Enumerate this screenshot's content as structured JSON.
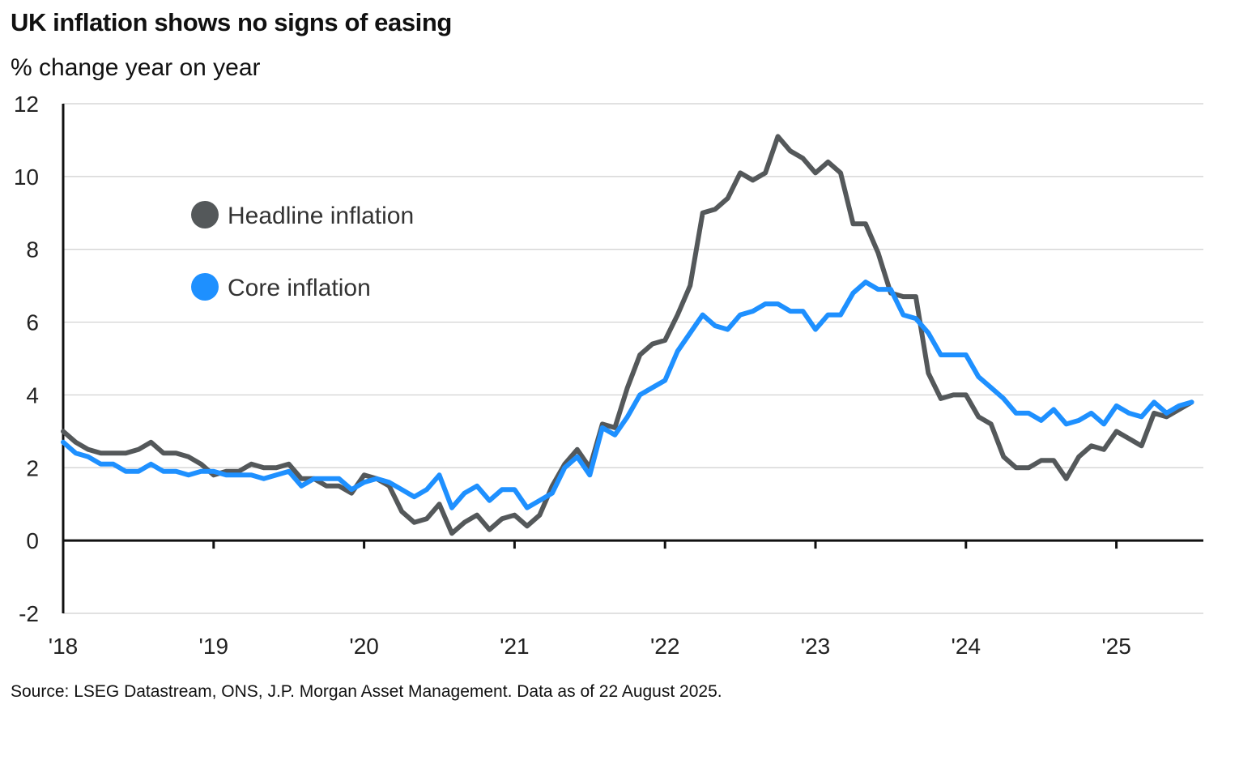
{
  "chart_data": {
    "type": "line",
    "title": "UK inflation shows no signs of easing",
    "subtitle": "% change year on year",
    "source": "Source: LSEG Datastream, ONS, J.P. Morgan Asset Management. Data as of 22 August 2025.",
    "ylim": [
      -2,
      12
    ],
    "yticks": [
      -2,
      0,
      2,
      4,
      6,
      8,
      10,
      12
    ],
    "xlim": [
      2018.0,
      2025.58
    ],
    "xticks": [
      {
        "label": "'18",
        "value": 2018
      },
      {
        "label": "'19",
        "value": 2019
      },
      {
        "label": "'20",
        "value": 2020
      },
      {
        "label": "'21",
        "value": 2021
      },
      {
        "label": "'22",
        "value": 2022
      },
      {
        "label": "'23",
        "value": 2023
      },
      {
        "label": "'24",
        "value": 2024
      },
      {
        "label": "'25",
        "value": 2025
      }
    ],
    "x_start": "2018-01",
    "x_frequency": "monthly",
    "grid": true,
    "legend_position": "top-left",
    "series": [
      {
        "name": "Headline inflation",
        "color": "#54585a",
        "values": [
          3.0,
          2.7,
          2.5,
          2.4,
          2.4,
          2.4,
          2.5,
          2.7,
          2.4,
          2.4,
          2.3,
          2.1,
          1.8,
          1.9,
          1.9,
          2.1,
          2.0,
          2.0,
          2.1,
          1.7,
          1.7,
          1.5,
          1.5,
          1.3,
          1.8,
          1.7,
          1.5,
          0.8,
          0.5,
          0.6,
          1.0,
          0.2,
          0.5,
          0.7,
          0.3,
          0.6,
          0.7,
          0.4,
          0.7,
          1.5,
          2.1,
          2.5,
          2.0,
          3.2,
          3.1,
          4.2,
          5.1,
          5.4,
          5.5,
          6.2,
          7.0,
          9.0,
          9.1,
          9.4,
          10.1,
          9.9,
          10.1,
          11.1,
          10.7,
          10.5,
          10.1,
          10.4,
          10.1,
          8.7,
          8.7,
          7.9,
          6.8,
          6.7,
          6.7,
          4.6,
          3.9,
          4.0,
          4.0,
          3.4,
          3.2,
          2.3,
          2.0,
          2.0,
          2.2,
          2.2,
          1.7,
          2.3,
          2.6,
          2.5,
          3.0,
          2.8,
          2.6,
          3.5,
          3.4,
          3.6,
          3.8
        ]
      },
      {
        "name": "Core inflation",
        "color": "#1e90ff",
        "values": [
          2.7,
          2.4,
          2.3,
          2.1,
          2.1,
          1.9,
          1.9,
          2.1,
          1.9,
          1.9,
          1.8,
          1.9,
          1.9,
          1.8,
          1.8,
          1.8,
          1.7,
          1.8,
          1.9,
          1.5,
          1.7,
          1.7,
          1.7,
          1.4,
          1.6,
          1.7,
          1.6,
          1.4,
          1.2,
          1.4,
          1.8,
          0.9,
          1.3,
          1.5,
          1.1,
          1.4,
          1.4,
          0.9,
          1.1,
          1.3,
          2.0,
          2.3,
          1.8,
          3.1,
          2.9,
          3.4,
          4.0,
          4.2,
          4.4,
          5.2,
          5.7,
          6.2,
          5.9,
          5.8,
          6.2,
          6.3,
          6.5,
          6.5,
          6.3,
          6.3,
          5.8,
          6.2,
          6.2,
          6.8,
          7.1,
          6.9,
          6.9,
          6.2,
          6.1,
          5.7,
          5.1,
          5.1,
          5.1,
          4.5,
          4.2,
          3.9,
          3.5,
          3.5,
          3.3,
          3.6,
          3.2,
          3.3,
          3.5,
          3.2,
          3.7,
          3.5,
          3.4,
          3.8,
          3.5,
          3.7,
          3.8
        ]
      }
    ]
  }
}
